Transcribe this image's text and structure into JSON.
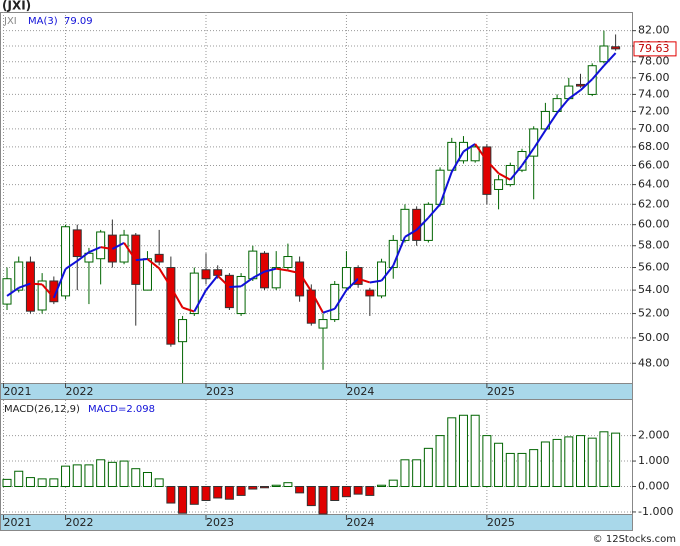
{
  "chart_data": [
    {
      "type": "candlestick",
      "title": "(JXI)",
      "ticker": "JXI",
      "ma_name": "MA(3)",
      "log_y": true,
      "grid": true,
      "up_color": "#006400",
      "down_color": "#e00000",
      "ma_up_color": "#1010d8",
      "ma_down_color": "#e00000",
      "xlim": [
        -0.6,
        53.4
      ],
      "xticks": [
        {
          "value": -0.3,
          "label": "2021"
        },
        {
          "value": 5,
          "label": "2022"
        },
        {
          "value": 17,
          "label": "2023"
        },
        {
          "value": 29,
          "label": "2024"
        },
        {
          "value": 41,
          "label": "2025"
        }
      ],
      "ylim": [
        46.5,
        84.5
      ],
      "yticks": [
        {
          "value": 48,
          "label": "48.00"
        },
        {
          "value": 50,
          "label": "50.00"
        },
        {
          "value": 52,
          "label": "52.00"
        },
        {
          "value": 54,
          "label": "54.00"
        },
        {
          "value": 56,
          "label": "56.00"
        },
        {
          "value": 58,
          "label": "58.00"
        },
        {
          "value": 60,
          "label": "60.00"
        },
        {
          "value": 62,
          "label": "62.00"
        },
        {
          "value": 64,
          "label": "64.00"
        },
        {
          "value": 66,
          "label": "66.00"
        },
        {
          "value": 68,
          "label": "68.00"
        },
        {
          "value": 70,
          "label": "70.00"
        },
        {
          "value": 72,
          "label": "72.00"
        },
        {
          "value": 74,
          "label": "74.00"
        },
        {
          "value": 76,
          "label": "76.00"
        },
        {
          "value": 78,
          "label": "78.00"
        },
        {
          "value": 80,
          "label": "80.00"
        },
        {
          "value": 82,
          "label": "82.00"
        }
      ],
      "open": [
        52.8,
        54,
        56.5,
        52.3,
        54.8,
        53.5,
        59.5,
        56.5,
        56.8,
        59,
        56.5,
        59,
        54,
        57.2,
        56,
        49.7,
        52,
        55.8,
        55.8,
        55.3,
        52,
        55,
        57.3,
        54.2,
        56,
        56.5,
        54,
        50.8,
        51.5,
        54.2,
        56,
        54,
        53.5,
        56,
        58.5,
        61.5,
        58.5,
        62,
        65.5,
        66.5,
        66.5,
        68,
        63.5,
        64,
        65.5,
        67,
        70,
        72,
        73.5,
        75.2,
        74,
        78,
        79.9
      ],
      "high": [
        56,
        57,
        57,
        55.5,
        55.2,
        60,
        60,
        57.8,
        59.5,
        60.5,
        59.5,
        59.2,
        57.5,
        59.5,
        57,
        51.8,
        56,
        57.3,
        56.2,
        55.5,
        55.5,
        58,
        57.5,
        57.5,
        58.2,
        57,
        54.5,
        52,
        54.8,
        57.5,
        56.2,
        54.2,
        56.8,
        59,
        62,
        61.8,
        62.2,
        65.8,
        69,
        69.2,
        68.3,
        68.3,
        65,
        66.3,
        67.8,
        70.3,
        73,
        74,
        76,
        76.5,
        77.8,
        82,
        81.5
      ],
      "low": [
        52.3,
        53.8,
        52,
        52,
        52.8,
        53.2,
        54,
        52.8,
        54.5,
        56,
        56.3,
        51,
        54,
        56.2,
        49.3,
        46.5,
        51.8,
        54.5,
        55,
        52.3,
        51.8,
        54.8,
        54,
        54,
        55.8,
        53,
        51,
        47.5,
        51.3,
        54,
        54.2,
        51.8,
        53.3,
        55,
        58.3,
        58,
        58.3,
        61.8,
        65.3,
        66.2,
        66.3,
        62,
        61.5,
        63.8,
        65.3,
        62.5,
        69.8,
        71.8,
        73.3,
        74.8,
        73.8,
        77.8,
        79.4
      ],
      "close": [
        55,
        56.5,
        52.2,
        54.8,
        53,
        59.8,
        57,
        57.3,
        59.3,
        56.5,
        59,
        54.5,
        56.8,
        56.5,
        49.5,
        51.5,
        55.5,
        55,
        55.3,
        52.5,
        55.2,
        57.5,
        54.2,
        56,
        57,
        53.5,
        51.2,
        51.5,
        54.5,
        56,
        54.5,
        53.5,
        56.5,
        58.5,
        61.5,
        58.5,
        62,
        65.5,
        68.5,
        68.5,
        68,
        63,
        64.5,
        66,
        67.5,
        70,
        72,
        73.5,
        75,
        75,
        77.5,
        80,
        79.63
      ],
      "ma": [
        53.5,
        54.2,
        54.57,
        54.5,
        53.33,
        55.87,
        56.6,
        57.4,
        57.87,
        57.7,
        58.27,
        56.67,
        56.77,
        55.93,
        54.27,
        52.5,
        52.17,
        54,
        55.27,
        54.27,
        54.33,
        55.07,
        55.63,
        55.9,
        55.73,
        55.5,
        53.9,
        52.07,
        52.4,
        54,
        55,
        54.67,
        54.83,
        56.17,
        58.83,
        59.5,
        60.67,
        62,
        65.33,
        67.5,
        68.33,
        66.5,
        65.17,
        64.5,
        66,
        67.83,
        69.83,
        71.83,
        73.5,
        74.5,
        75.83,
        77.5,
        79.09
      ]
    },
    {
      "type": "macd_bar",
      "name": "MACD(26,12,9)",
      "legend_label": "MACD=2.098",
      "grid": true,
      "up_color": "#006400",
      "down_color": "#e00000",
      "xlim": [
        -0.6,
        53.4
      ],
      "xticks": [
        {
          "value": -0.3,
          "label": "2021"
        },
        {
          "value": 5,
          "label": "2022"
        },
        {
          "value": 17,
          "label": "2023"
        },
        {
          "value": 29,
          "label": "2024"
        },
        {
          "value": 41,
          "label": "2025"
        }
      ],
      "ylim": [
        -1.12,
        3.4
      ],
      "yticks": [
        {
          "value": -1,
          "label": "-1.000"
        },
        {
          "value": 0,
          "label": "0.000"
        },
        {
          "value": 1,
          "label": "1.000"
        },
        {
          "value": 2,
          "label": "2.000"
        }
      ],
      "values": [
        0.28,
        0.6,
        0.35,
        0.3,
        0.3,
        0.8,
        0.85,
        0.85,
        1.05,
        0.95,
        1.0,
        0.7,
        0.55,
        0.3,
        -0.65,
        -1.05,
        -0.7,
        -0.55,
        -0.45,
        -0.5,
        -0.35,
        -0.1,
        -0.05,
        0.05,
        0.15,
        -0.25,
        -0.75,
        -1.08,
        -0.55,
        -0.4,
        -0.3,
        -0.35,
        0.05,
        0.25,
        1.05,
        1.05,
        1.5,
        2.0,
        2.7,
        2.8,
        2.8,
        2.0,
        1.7,
        1.3,
        1.3,
        1.45,
        1.75,
        1.85,
        1.95,
        2.0,
        1.9,
        2.15,
        2.098
      ]
    },
    {
      "source": "© 12Stocks.com"
    }
  ]
}
